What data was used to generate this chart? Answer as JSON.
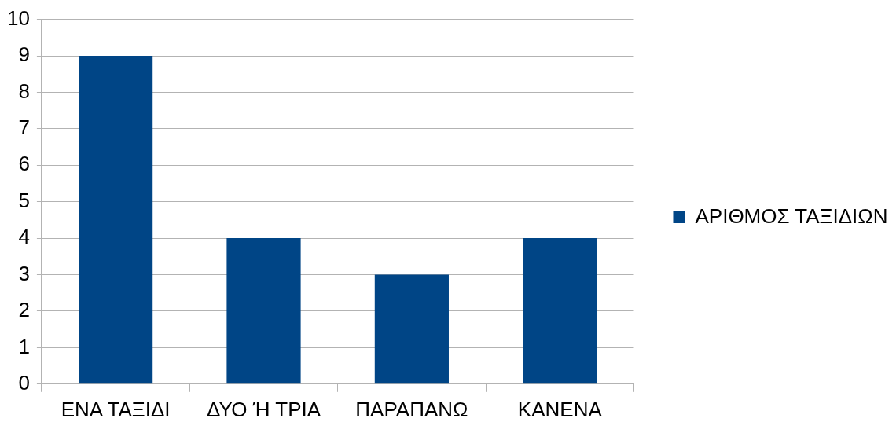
{
  "chart_data": {
    "type": "bar",
    "categories": [
      "ΕΝΑ ΤΑΞΙΔΙ",
      "ΔΥΟ Ή ΤΡΙΑ",
      "ΠΑΡΑΠΑΝΩ",
      "ΚΑΝΕΝΑ"
    ],
    "series": [
      {
        "name": "ΑΡΙΘΜΟΣ ΤΑΞΙΔΙΩΝ",
        "color": "#004586",
        "values": [
          9,
          4,
          3,
          4
        ]
      }
    ],
    "ylim": [
      0,
      10
    ],
    "yticks": [
      0,
      1,
      2,
      3,
      4,
      5,
      6,
      7,
      8,
      9,
      10
    ],
    "grid": "y",
    "legend": "right"
  }
}
